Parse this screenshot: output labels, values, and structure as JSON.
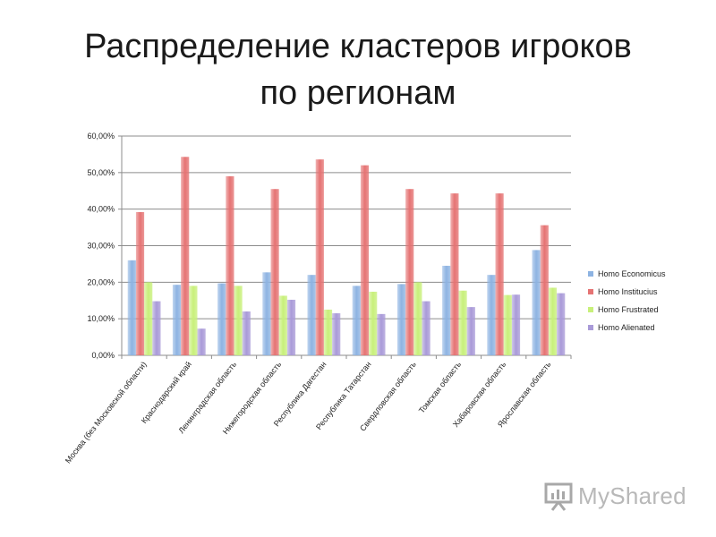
{
  "slide": {
    "title_line1": "Распределение кластеров игроков",
    "title_line2": "по регионам"
  },
  "watermark": {
    "text": "MyShared",
    "icon": "presentation-board-icon"
  },
  "chart_data": {
    "type": "bar",
    "categories": [
      "Москва (без Московской области)",
      "Краснодарский край",
      "Ленинградская область",
      "Нижегородская область",
      "Республика Дагестан",
      "Республика Татарстан",
      "Свердловская область",
      "Томская область",
      "Хабаровская область",
      "Ярославская область"
    ],
    "series": [
      {
        "name": "Homo Economicus",
        "color": "#8db3e2",
        "values": [
          26.0,
          19.3,
          19.7,
          22.7,
          22.0,
          19.0,
          19.5,
          24.5,
          22.0,
          28.8
        ]
      },
      {
        "name": "Homo Institucius",
        "color": "#e57373",
        "values": [
          39.2,
          54.3,
          49.0,
          45.5,
          53.6,
          52.0,
          45.5,
          44.3,
          44.3,
          35.6
        ]
      },
      {
        "name": "Homo Frustrated",
        "color": "#c8f07a",
        "values": [
          20.0,
          19.0,
          19.0,
          16.3,
          12.5,
          17.4,
          20.0,
          17.7,
          16.5,
          18.5
        ]
      },
      {
        "name": "Homo Alienated",
        "color": "#a99ad8",
        "values": [
          14.8,
          7.3,
          12.0,
          15.2,
          11.5,
          11.3,
          14.8,
          13.2,
          16.6,
          17.0
        ]
      }
    ],
    "yticks": [
      "0,00%",
      "10,00%",
      "20,00%",
      "30,00%",
      "40,00%",
      "50,00%",
      "60,00%"
    ],
    "ylim": [
      0,
      60
    ],
    "grid": true,
    "legend_position": "right"
  }
}
